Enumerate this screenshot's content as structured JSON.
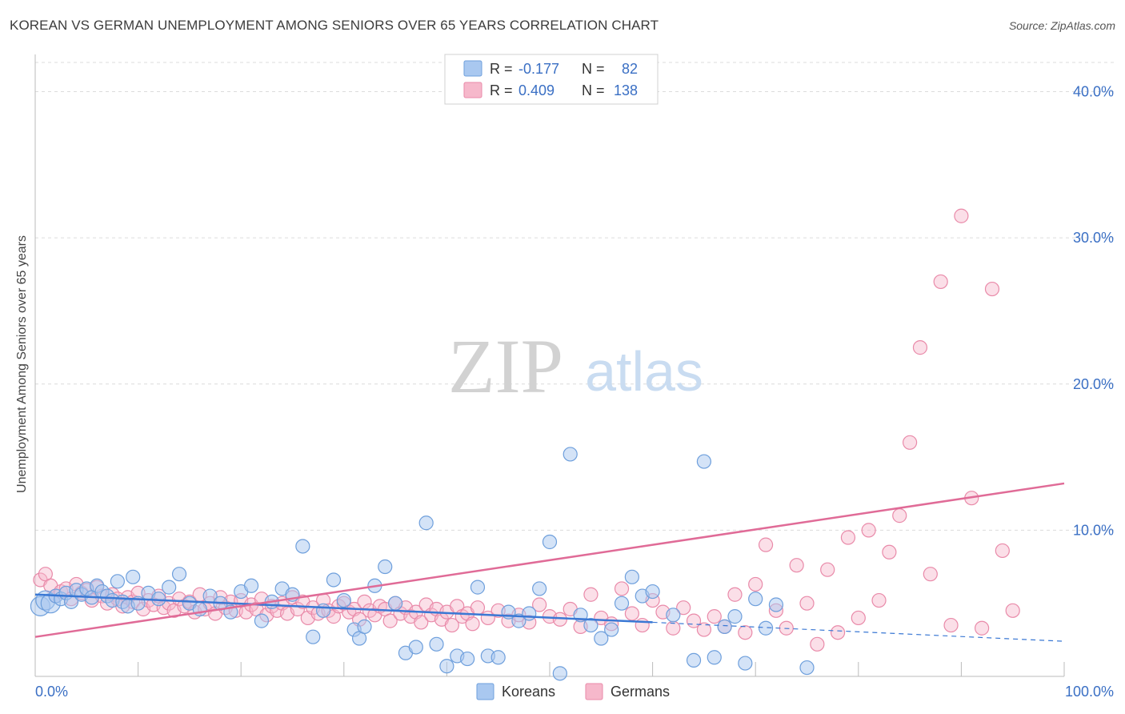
{
  "header": {
    "title": "KOREAN VS GERMAN UNEMPLOYMENT AMONG SENIORS OVER 65 YEARS CORRELATION CHART",
    "source": "Source: ZipAtlas.com"
  },
  "watermark": {
    "zip": "ZIP",
    "atlas": "atlas"
  },
  "colors": {
    "korean_fill": "#a9c8f0",
    "korean_stroke": "#6e9fdc",
    "korean_line": "#3a78d4",
    "german_fill": "#f6b8cb",
    "german_stroke": "#e98aa9",
    "german_line": "#e06b97",
    "axis_value": "#3a6fc4",
    "grid": "#dcdcdc"
  },
  "legend_stats": [
    {
      "r_label": "R = ",
      "r_value": "-0.177",
      "n_label": "N = ",
      "n_value": "82"
    },
    {
      "r_label": "R = ",
      "r_value": "0.409",
      "n_label": "N = ",
      "n_value": "138"
    }
  ],
  "chart_data": {
    "type": "scatter",
    "title": "KOREAN VS GERMAN UNEMPLOYMENT AMONG SENIORS OVER 65 YEARS CORRELATION CHART",
    "xlabel": "",
    "ylabel": "Unemployment Among Seniors over 65 years",
    "xlim": [
      0,
      100
    ],
    "ylim": [
      0,
      42
    ],
    "x_tick_labels": [
      "0.0%",
      "100.0%"
    ],
    "y_ticks": [
      10,
      20,
      30,
      40
    ],
    "y_tick_labels": [
      "10.0%",
      "20.0%",
      "30.0%",
      "40.0%"
    ],
    "grid": true,
    "legend_position": "bottom-center",
    "series": [
      {
        "name": "Koreans",
        "trend": {
          "x": [
            0,
            60
          ],
          "y": [
            5.6,
            3.7
          ],
          "dashed_to": [
            100,
            2.4
          ]
        },
        "points": [
          [
            0.5,
            4.8
          ],
          [
            1,
            5.2
          ],
          [
            1.5,
            5.0
          ],
          [
            2,
            5.5
          ],
          [
            2.5,
            5.3
          ],
          [
            3,
            5.7
          ],
          [
            3.5,
            5.1
          ],
          [
            4,
            5.9
          ],
          [
            4.5,
            5.6
          ],
          [
            5,
            6.0
          ],
          [
            5.5,
            5.4
          ],
          [
            6,
            6.2
          ],
          [
            6.5,
            5.8
          ],
          [
            7,
            5.5
          ],
          [
            7.5,
            5.2
          ],
          [
            8,
            6.5
          ],
          [
            8.5,
            5.1
          ],
          [
            9,
            4.8
          ],
          [
            9.5,
            6.8
          ],
          [
            10,
            5.0
          ],
          [
            11,
            5.7
          ],
          [
            12,
            5.3
          ],
          [
            13,
            6.1
          ],
          [
            14,
            7.0
          ],
          [
            15,
            5.0
          ],
          [
            16,
            4.6
          ],
          [
            17,
            5.5
          ],
          [
            18,
            5.0
          ],
          [
            19,
            4.4
          ],
          [
            20,
            5.8
          ],
          [
            21,
            6.2
          ],
          [
            22,
            3.8
          ],
          [
            23,
            5.1
          ],
          [
            24,
            6.0
          ],
          [
            25,
            5.6
          ],
          [
            26,
            8.9
          ],
          [
            27,
            2.7
          ],
          [
            28,
            4.5
          ],
          [
            29,
            6.6
          ],
          [
            30,
            5.2
          ],
          [
            31,
            3.2
          ],
          [
            31.5,
            2.6
          ],
          [
            32,
            3.4
          ],
          [
            33,
            6.2
          ],
          [
            34,
            7.5
          ],
          [
            35,
            5.0
          ],
          [
            36,
            1.6
          ],
          [
            37,
            2.0
          ],
          [
            38,
            10.5
          ],
          [
            39,
            2.2
          ],
          [
            40,
            0.7
          ],
          [
            41,
            1.4
          ],
          [
            42,
            1.2
          ],
          [
            43,
            6.1
          ],
          [
            44,
            1.4
          ],
          [
            45,
            1.3
          ],
          [
            46,
            4.4
          ],
          [
            47,
            3.8
          ],
          [
            48,
            4.3
          ],
          [
            49,
            6.0
          ],
          [
            50,
            9.2
          ],
          [
            51,
            0.2
          ],
          [
            52,
            15.2
          ],
          [
            53,
            4.2
          ],
          [
            54,
            3.5
          ],
          [
            55,
            2.6
          ],
          [
            56,
            3.2
          ],
          [
            57,
            5.0
          ],
          [
            58,
            6.8
          ],
          [
            59,
            5.5
          ],
          [
            60,
            5.8
          ],
          [
            62,
            4.2
          ],
          [
            64,
            1.1
          ],
          [
            65,
            14.7
          ],
          [
            66,
            1.3
          ],
          [
            67,
            3.4
          ],
          [
            68,
            4.1
          ],
          [
            69,
            0.9
          ],
          [
            70,
            5.3
          ],
          [
            71,
            3.3
          ],
          [
            72,
            4.9
          ],
          [
            75,
            0.6
          ]
        ]
      },
      {
        "name": "Germans",
        "trend": {
          "x": [
            0,
            100
          ],
          "y": [
            2.7,
            13.2
          ]
        },
        "points": [
          [
            0.5,
            6.6
          ],
          [
            1,
            7.0
          ],
          [
            1.5,
            6.2
          ],
          [
            2,
            5.5
          ],
          [
            2.5,
            5.8
          ],
          [
            3,
            6.0
          ],
          [
            3.5,
            5.3
          ],
          [
            4,
            6.3
          ],
          [
            4.5,
            5.7
          ],
          [
            5,
            5.9
          ],
          [
            5.5,
            5.2
          ],
          [
            6,
            6.1
          ],
          [
            6.5,
            5.5
          ],
          [
            7,
            5.0
          ],
          [
            7.5,
            5.6
          ],
          [
            8,
            5.3
          ],
          [
            8.5,
            4.8
          ],
          [
            9,
            5.4
          ],
          [
            9.5,
            5.1
          ],
          [
            10,
            5.7
          ],
          [
            10.5,
            4.6
          ],
          [
            11,
            5.2
          ],
          [
            11.5,
            4.9
          ],
          [
            12,
            5.5
          ],
          [
            12.5,
            4.7
          ],
          [
            13,
            5.0
          ],
          [
            13.5,
            4.5
          ],
          [
            14,
            5.3
          ],
          [
            14.5,
            4.8
          ],
          [
            15,
            5.1
          ],
          [
            15.5,
            4.4
          ],
          [
            16,
            5.6
          ],
          [
            16.5,
            4.6
          ],
          [
            17,
            5.0
          ],
          [
            17.5,
            4.3
          ],
          [
            18,
            5.4
          ],
          [
            18.5,
            4.7
          ],
          [
            19,
            5.1
          ],
          [
            19.5,
            4.5
          ],
          [
            20,
            5.2
          ],
          [
            20.5,
            4.4
          ],
          [
            21,
            4.9
          ],
          [
            21.5,
            4.6
          ],
          [
            22,
            5.3
          ],
          [
            22.5,
            4.2
          ],
          [
            23,
            4.8
          ],
          [
            23.5,
            4.5
          ],
          [
            24,
            5.0
          ],
          [
            24.5,
            4.3
          ],
          [
            25,
            5.4
          ],
          [
            25.5,
            4.6
          ],
          [
            26,
            5.1
          ],
          [
            26.5,
            4.0
          ],
          [
            27,
            4.7
          ],
          [
            27.5,
            4.3
          ],
          [
            28,
            5.2
          ],
          [
            28.5,
            4.5
          ],
          [
            29,
            4.1
          ],
          [
            29.5,
            4.8
          ],
          [
            30,
            5.0
          ],
          [
            30.5,
            4.4
          ],
          [
            31,
            4.6
          ],
          [
            31.5,
            3.9
          ],
          [
            32,
            5.1
          ],
          [
            32.5,
            4.5
          ],
          [
            33,
            4.2
          ],
          [
            33.5,
            4.8
          ],
          [
            34,
            4.6
          ],
          [
            34.5,
            3.8
          ],
          [
            35,
            5.0
          ],
          [
            35.5,
            4.3
          ],
          [
            36,
            4.7
          ],
          [
            36.5,
            4.1
          ],
          [
            37,
            4.4
          ],
          [
            37.5,
            3.7
          ],
          [
            38,
            4.9
          ],
          [
            38.5,
            4.2
          ],
          [
            39,
            4.6
          ],
          [
            39.5,
            3.9
          ],
          [
            40,
            4.4
          ],
          [
            40.5,
            3.5
          ],
          [
            41,
            4.8
          ],
          [
            41.5,
            4.1
          ],
          [
            42,
            4.3
          ],
          [
            42.5,
            3.6
          ],
          [
            43,
            4.7
          ],
          [
            44,
            4.0
          ],
          [
            45,
            4.5
          ],
          [
            46,
            3.8
          ],
          [
            47,
            4.2
          ],
          [
            48,
            3.7
          ],
          [
            49,
            4.9
          ],
          [
            50,
            4.1
          ],
          [
            51,
            3.9
          ],
          [
            52,
            4.6
          ],
          [
            53,
            3.4
          ],
          [
            54,
            5.6
          ],
          [
            55,
            4.0
          ],
          [
            56,
            3.6
          ],
          [
            57,
            6.0
          ],
          [
            58,
            4.3
          ],
          [
            59,
            3.5
          ],
          [
            60,
            5.2
          ],
          [
            61,
            4.4
          ],
          [
            62,
            3.3
          ],
          [
            63,
            4.7
          ],
          [
            64,
            3.8
          ],
          [
            65,
            3.2
          ],
          [
            66,
            4.1
          ],
          [
            67,
            3.4
          ],
          [
            68,
            5.6
          ],
          [
            69,
            3.0
          ],
          [
            70,
            6.3
          ],
          [
            71,
            9.0
          ],
          [
            72,
            4.5
          ],
          [
            73,
            3.3
          ],
          [
            74,
            7.6
          ],
          [
            75,
            5.0
          ],
          [
            76,
            2.2
          ],
          [
            77,
            7.3
          ],
          [
            78,
            3.0
          ],
          [
            79,
            9.5
          ],
          [
            80,
            4.0
          ],
          [
            81,
            10.0
          ],
          [
            82,
            5.2
          ],
          [
            83,
            8.5
          ],
          [
            84,
            11.0
          ],
          [
            85,
            16.0
          ],
          [
            86,
            22.5
          ],
          [
            87,
            7.0
          ],
          [
            88,
            27.0
          ],
          [
            89,
            3.5
          ],
          [
            90,
            31.5
          ],
          [
            91,
            12.2
          ],
          [
            92,
            3.3
          ],
          [
            93,
            26.5
          ],
          [
            94,
            8.6
          ],
          [
            95,
            4.5
          ]
        ]
      }
    ]
  },
  "legend": {
    "items": [
      "Koreans",
      "Germans"
    ]
  }
}
